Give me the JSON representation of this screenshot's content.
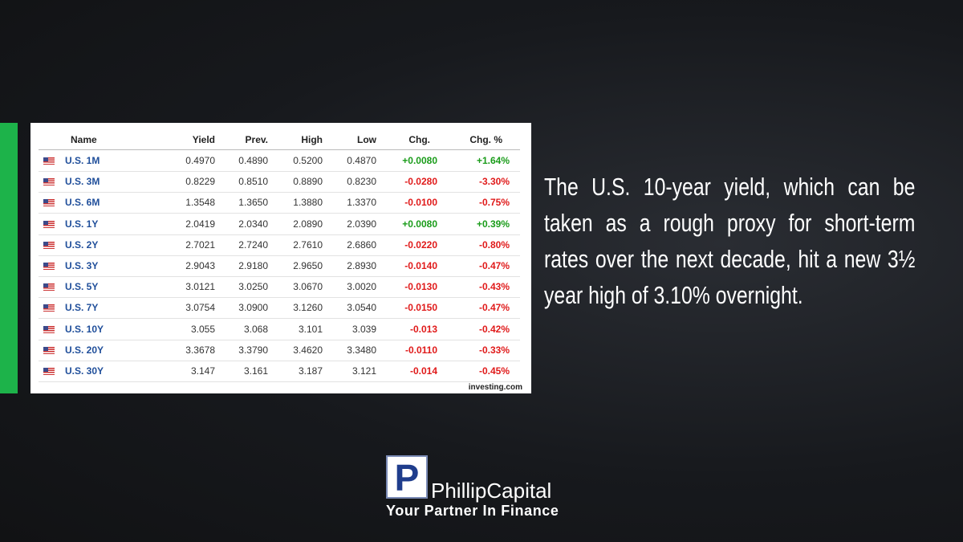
{
  "table": {
    "columns": [
      "Name",
      "Yield",
      "Prev.",
      "High",
      "Low",
      "Chg.",
      "Chg. %"
    ],
    "rows": [
      [
        "U.S. 1M",
        "0.4970",
        "0.4890",
        "0.5200",
        "0.4870",
        "+0.0080",
        "+1.64%"
      ],
      [
        "U.S. 3M",
        "0.8229",
        "0.8510",
        "0.8890",
        "0.8230",
        "-0.0280",
        "-3.30%"
      ],
      [
        "U.S. 6M",
        "1.3548",
        "1.3650",
        "1.3880",
        "1.3370",
        "-0.0100",
        "-0.75%"
      ],
      [
        "U.S. 1Y",
        "2.0419",
        "2.0340",
        "2.0890",
        "2.0390",
        "+0.0080",
        "+0.39%"
      ],
      [
        "U.S. 2Y",
        "2.7021",
        "2.7240",
        "2.7610",
        "2.6860",
        "-0.0220",
        "-0.80%"
      ],
      [
        "U.S. 3Y",
        "2.9043",
        "2.9180",
        "2.9650",
        "2.8930",
        "-0.0140",
        "-0.47%"
      ],
      [
        "U.S. 5Y",
        "3.0121",
        "3.0250",
        "3.0670",
        "3.0020",
        "-0.0130",
        "-0.43%"
      ],
      [
        "U.S. 7Y",
        "3.0754",
        "3.0900",
        "3.1260",
        "3.0540",
        "-0.0150",
        "-0.47%"
      ],
      [
        "U.S. 10Y",
        "3.055",
        "3.068",
        "3.101",
        "3.039",
        "-0.013",
        "-0.42%"
      ],
      [
        "U.S. 20Y",
        "3.3678",
        "3.3790",
        "3.4620",
        "3.3480",
        "-0.0110",
        "-0.33%"
      ],
      [
        "U.S. 30Y",
        "3.147",
        "3.161",
        "3.187",
        "3.121",
        "-0.014",
        "-0.45%"
      ]
    ],
    "source": "investing.com"
  },
  "commentary": "The U.S. 10-year yield, which can be taken as a rough proxy for short-term rates over the next decade, hit a new 3½ year high of 3.10% overnight.",
  "logo": {
    "mark": "P",
    "name": "PhillipCapital",
    "tagline": "Your Partner In Finance"
  }
}
